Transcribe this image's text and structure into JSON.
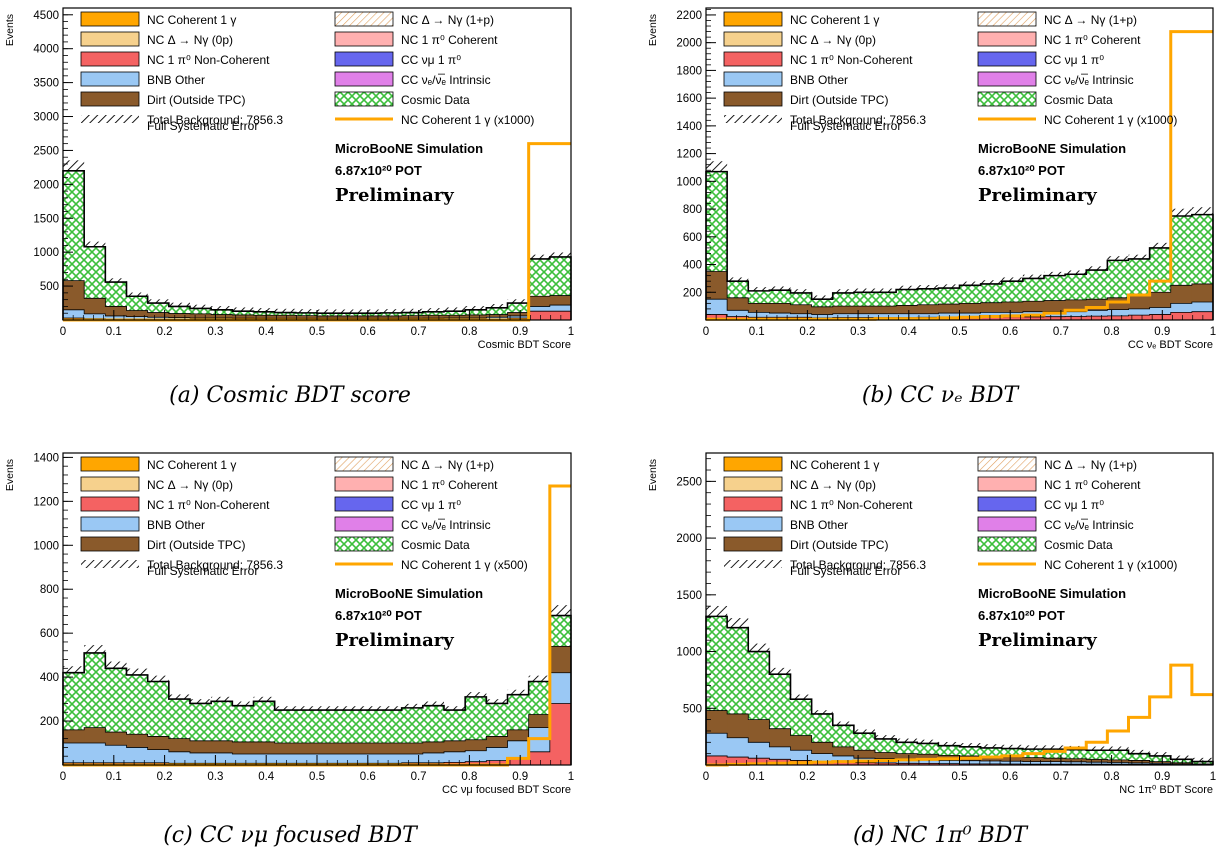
{
  "legend_entries": [
    {
      "label": "NC Coherent 1 γ",
      "swatch": "fill",
      "color": "#ffa600"
    },
    {
      "label": "NC Δ → Nγ (1+p)",
      "swatch": "hatch-orange",
      "color": "#f4c68e"
    },
    {
      "label": "NC Δ → Nγ (0p)",
      "swatch": "fill",
      "color": "#f6d18d"
    },
    {
      "label": "NC 1 π⁰ Coherent",
      "swatch": "fill",
      "color": "#ffb0b0"
    },
    {
      "label": "NC 1 π⁰ Non-Coherent",
      "swatch": "fill",
      "color": "#f46262"
    },
    {
      "label": "CC νμ 1 π⁰",
      "swatch": "fill",
      "color": "#6666ee"
    },
    {
      "label": "BNB Other",
      "swatch": "fill",
      "color": "#9ac8f4"
    },
    {
      "label": "CC νₑ/ν̅ₑ Intrinsic",
      "swatch": "fill",
      "color": "#e080e8"
    },
    {
      "label": "Dirt (Outside TPC)",
      "swatch": "fill",
      "color": "#8a5a2b"
    },
    {
      "label": "Cosmic Data",
      "swatch": "hatch-green",
      "color": "#7ad77a"
    },
    {
      "label": "Total Background: 7856.3",
      "swatch": "hatch-black",
      "color": "#000000"
    },
    {
      "label": "NC Coherent 1 γ (x1000)",
      "swatch": "line",
      "color": "#ffa600"
    },
    {
      "label": "Full Systematic Error",
      "swatch": "none",
      "color": ""
    }
  ],
  "annotation": {
    "line1": "MicroBooNE Simulation",
    "line2": "6.87x10²⁰ POT",
    "line3": "Preliminary"
  },
  "chart_data": [
    {
      "type": "bar",
      "caption": "(a) Cosmic BDT score",
      "ylabel": "Events",
      "xlabel": "Cosmic BDT Score",
      "xlim": [
        0,
        1
      ],
      "ylim": [
        0,
        4600
      ],
      "yticks": [
        500,
        1000,
        1500,
        2000,
        2500,
        3000,
        3500,
        4000,
        4500
      ],
      "xticks": [
        0,
        0.1,
        0.2,
        0.3,
        0.4,
        0.5,
        0.6,
        0.7,
        0.8,
        0.9,
        1
      ],
      "signal_label": "NC Coherent 1 γ (x1000)",
      "total": [
        2200,
        1080,
        560,
        350,
        250,
        200,
        170,
        150,
        130,
        120,
        110,
        105,
        100,
        100,
        100,
        105,
        110,
        120,
        130,
        150,
        180,
        250,
        900,
        930
      ],
      "dirt": [
        580,
        320,
        200,
        140,
        110,
        95,
        90,
        80,
        75,
        70,
        70,
        65,
        60,
        60,
        60,
        60,
        65,
        70,
        70,
        75,
        80,
        110,
        350,
        360
      ],
      "bnb": [
        150,
        90,
        60,
        50,
        40,
        35,
        30,
        30,
        28,
        25,
        25,
        25,
        25,
        25,
        25,
        25,
        25,
        28,
        30,
        30,
        40,
        60,
        200,
        220
      ],
      "nc1pi0": [
        30,
        20,
        15,
        10,
        10,
        10,
        8,
        8,
        8,
        8,
        8,
        8,
        8,
        8,
        8,
        8,
        8,
        8,
        8,
        10,
        15,
        30,
        130,
        130
      ],
      "signal": [
        0,
        0,
        0,
        0,
        0,
        0,
        0,
        0,
        0,
        0,
        0,
        0,
        0,
        0,
        0,
        0,
        0,
        0,
        0,
        0,
        0,
        0,
        2600,
        2600
      ]
    },
    {
      "type": "bar",
      "caption": "(b) CC νₑ BDT",
      "ylabel": "Events",
      "xlabel": "CC νₑ BDT Score",
      "xlim": [
        0,
        1
      ],
      "ylim": [
        0,
        2250
      ],
      "yticks": [
        200,
        400,
        600,
        800,
        1000,
        1200,
        1400,
        1600,
        1800,
        2000,
        2200
      ],
      "xticks": [
        0,
        0.1,
        0.2,
        0.3,
        0.4,
        0.5,
        0.6,
        0.7,
        0.8,
        0.9,
        1
      ],
      "signal_label": "NC Coherent 1 γ (x1000)",
      "total": [
        1070,
        280,
        210,
        215,
        195,
        150,
        195,
        200,
        200,
        220,
        225,
        230,
        250,
        260,
        280,
        300,
        320,
        330,
        360,
        430,
        440,
        520,
        750,
        760
      ],
      "dirt": [
        350,
        160,
        120,
        120,
        110,
        95,
        100,
        100,
        100,
        105,
        110,
        115,
        120,
        125,
        130,
        135,
        140,
        145,
        150,
        160,
        180,
        200,
        250,
        260
      ],
      "bnb": [
        150,
        70,
        55,
        50,
        45,
        40,
        45,
        45,
        45,
        45,
        45,
        50,
        50,
        55,
        55,
        60,
        60,
        60,
        70,
        75,
        80,
        90,
        120,
        130
      ],
      "nc1pi0": [
        40,
        25,
        20,
        20,
        20,
        15,
        18,
        18,
        18,
        18,
        20,
        20,
        20,
        20,
        22,
        22,
        24,
        25,
        28,
        30,
        35,
        40,
        55,
        60
      ],
      "signal": [
        5,
        5,
        5,
        5,
        5,
        5,
        5,
        5,
        10,
        10,
        10,
        15,
        20,
        25,
        30,
        35,
        50,
        70,
        90,
        130,
        180,
        280,
        2080,
        2080
      ]
    },
    {
      "type": "bar",
      "caption": "(c) CC νμ focused BDT",
      "ylabel": "Events",
      "xlabel": "CC νμ focused BDT Score",
      "xlim": [
        0,
        1
      ],
      "ylim": [
        0,
        1420
      ],
      "yticks": [
        200,
        400,
        600,
        800,
        1000,
        1200,
        1400
      ],
      "xticks": [
        0,
        0.1,
        0.2,
        0.3,
        0.4,
        0.5,
        0.6,
        0.7,
        0.8,
        0.9,
        1
      ],
      "signal_label": "NC Coherent 1 γ (x500)",
      "total": [
        420,
        510,
        440,
        410,
        380,
        300,
        280,
        290,
        270,
        290,
        250,
        250,
        250,
        250,
        250,
        250,
        260,
        270,
        250,
        310,
        280,
        320,
        380,
        680
      ],
      "dirt": [
        160,
        170,
        150,
        140,
        130,
        120,
        110,
        110,
        105,
        105,
        100,
        100,
        100,
        100,
        100,
        100,
        100,
        105,
        110,
        115,
        130,
        160,
        230,
        540
      ],
      "bnb": [
        100,
        100,
        90,
        80,
        70,
        60,
        55,
        55,
        50,
        50,
        50,
        50,
        50,
        50,
        50,
        50,
        50,
        55,
        60,
        65,
        80,
        110,
        170,
        420
      ],
      "nc1pi0": [
        10,
        10,
        10,
        10,
        10,
        8,
        8,
        8,
        8,
        8,
        8,
        8,
        8,
        8,
        8,
        8,
        10,
        10,
        12,
        15,
        20,
        30,
        60,
        280
      ],
      "signal": [
        0,
        0,
        0,
        0,
        0,
        0,
        0,
        0,
        0,
        0,
        0,
        0,
        0,
        0,
        0,
        0,
        0,
        0,
        0,
        0,
        0,
        30,
        120,
        1270
      ]
    },
    {
      "type": "bar",
      "caption": "(d) NC 1π⁰ BDT",
      "ylabel": "Events",
      "xlabel": "NC 1π⁰ BDT Score",
      "xlim": [
        0,
        1
      ],
      "ylim": [
        0,
        2750
      ],
      "yticks": [
        500,
        1000,
        1500,
        2000,
        2500
      ],
      "xticks": [
        0,
        0.1,
        0.2,
        0.3,
        0.4,
        0.5,
        0.6,
        0.7,
        0.8,
        0.9,
        1
      ],
      "signal_label": "NC Coherent 1 γ (x1000)",
      "total": [
        1310,
        1210,
        1000,
        800,
        580,
        450,
        350,
        280,
        230,
        200,
        190,
        170,
        160,
        150,
        145,
        140,
        140,
        135,
        130,
        130,
        100,
        80,
        50,
        30
      ],
      "dirt": [
        480,
        450,
        400,
        320,
        260,
        200,
        160,
        130,
        110,
        100,
        95,
        85,
        80,
        75,
        70,
        65,
        60,
        55,
        50,
        45,
        40,
        30,
        20,
        10
      ],
      "bnb": [
        280,
        240,
        200,
        160,
        130,
        100,
        80,
        60,
        55,
        50,
        45,
        40,
        38,
        35,
        33,
        30,
        30,
        28,
        25,
        22,
        18,
        15,
        10,
        5
      ],
      "nc1pi0": [
        80,
        70,
        60,
        50,
        40,
        30,
        25,
        20,
        18,
        15,
        14,
        12,
        10,
        10,
        9,
        8,
        8,
        8,
        7,
        7,
        6,
        5,
        4,
        3
      ],
      "signal": [
        0,
        5,
        10,
        15,
        20,
        25,
        30,
        35,
        40,
        45,
        50,
        55,
        60,
        70,
        80,
        100,
        120,
        150,
        200,
        300,
        420,
        600,
        880,
        620
      ]
    }
  ]
}
